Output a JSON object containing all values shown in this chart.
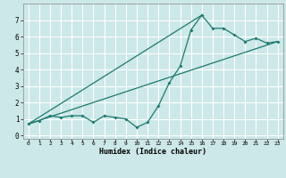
{
  "xlabel": "Humidex (Indice chaleur)",
  "bg_color": "#cce8e8",
  "grid_color": "#ffffff",
  "line_color": "#1a7a6e",
  "xlim": [
    -0.5,
    23.5
  ],
  "ylim": [
    -0.2,
    8.0
  ],
  "xticks": [
    0,
    1,
    2,
    3,
    4,
    5,
    6,
    7,
    8,
    9,
    10,
    11,
    12,
    13,
    14,
    15,
    16,
    17,
    18,
    19,
    20,
    21,
    22,
    23
  ],
  "yticks": [
    0,
    1,
    2,
    3,
    4,
    5,
    6,
    7
  ],
  "series1_x": [
    0,
    1,
    2,
    3,
    4,
    5,
    6,
    7,
    8,
    9,
    10,
    11,
    12,
    13,
    14,
    15,
    16,
    17,
    18,
    19,
    20,
    21,
    22,
    23
  ],
  "series1_y": [
    0.7,
    0.9,
    1.2,
    1.1,
    1.2,
    1.2,
    0.8,
    1.2,
    1.1,
    1.0,
    0.5,
    0.8,
    1.8,
    3.2,
    4.2,
    6.4,
    7.3,
    6.5,
    6.5,
    6.1,
    5.7,
    5.9,
    5.6,
    5.7
  ],
  "series2_x": [
    0,
    23
  ],
  "series2_y": [
    0.7,
    5.7
  ],
  "series3_x": [
    0,
    16
  ],
  "series3_y": [
    0.7,
    7.3
  ]
}
